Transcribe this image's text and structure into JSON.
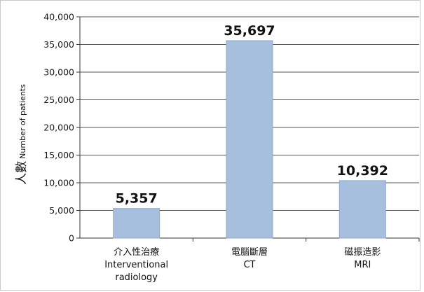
{
  "chart_data": {
    "type": "bar",
    "categories": [
      [
        "介入性治療",
        "Interventional",
        "radiology"
      ],
      [
        "電腦斷層",
        "CT"
      ],
      [
        "磁振造影",
        "MRI"
      ]
    ],
    "values": [
      5357,
      35697,
      10392
    ],
    "data_labels": [
      "5,357",
      "35,697",
      "10,392"
    ],
    "ylabel": {
      "cjk": "人數",
      "en": "Number of patients"
    },
    "ylim": [
      0,
      40000
    ],
    "yticks": [
      0,
      5000,
      10000,
      15000,
      20000,
      25000,
      30000,
      35000,
      40000
    ],
    "ytick_labels": [
      "0",
      "5,000",
      "10,000",
      "15,000",
      "20,000",
      "25,000",
      "30,000",
      "35,000",
      "40,000"
    ],
    "grid": true,
    "legend": "none",
    "colors": {
      "bar": "#a7bfdc",
      "bar_edge": "#8fa9c9",
      "grid": "#555555",
      "axis": "#333333"
    }
  }
}
